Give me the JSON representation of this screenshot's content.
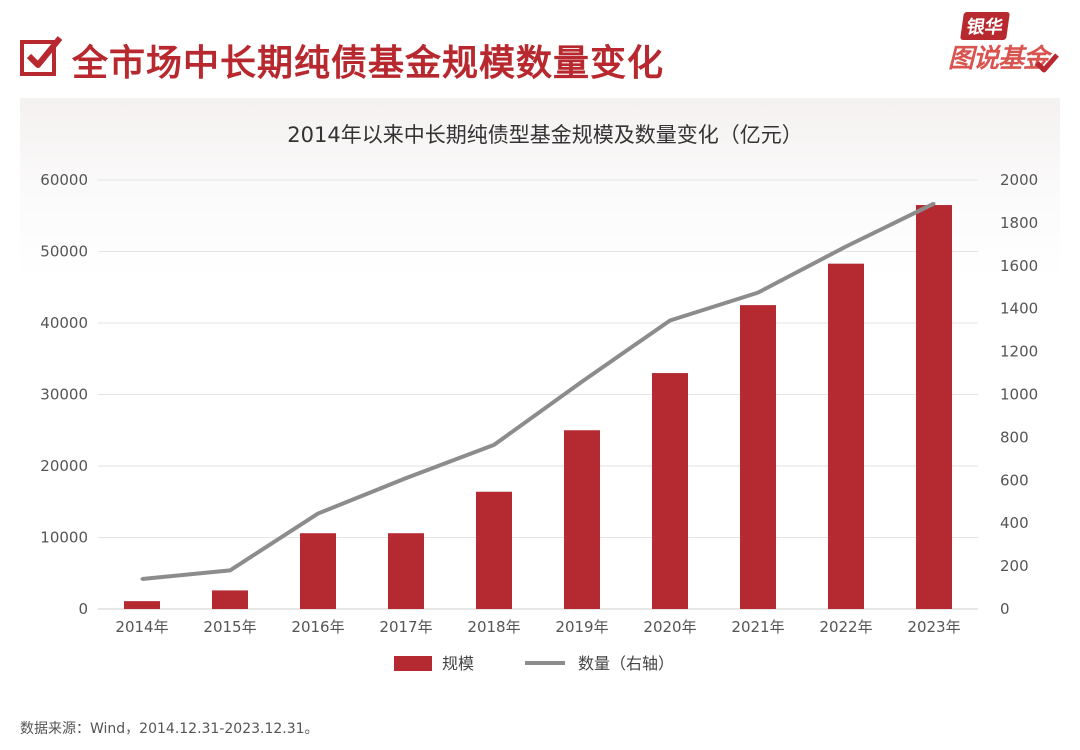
{
  "page": {
    "title": "全市场中长期纯债基金规模数量变化",
    "logo_top": "银华",
    "logo_bottom": "图说基金",
    "source": "数据来源：Wind，2014.12.31-2023.12.31。"
  },
  "colors": {
    "accent": "#b8292f",
    "bar": "#b52a31",
    "line": "#8c8c8c"
  },
  "chart_data": {
    "type": "bar",
    "title": "2014年以来中长期纯债型基金规模及数量变化（亿元）",
    "categories": [
      "2014年",
      "2015年",
      "2016年",
      "2017年",
      "2018年",
      "2019年",
      "2020年",
      "2021年",
      "2022年",
      "2023年"
    ],
    "series": [
      {
        "name": "规模",
        "type": "bar",
        "axis": "left",
        "values": [
          1100,
          2600,
          10600,
          10600,
          16400,
          25000,
          33000,
          42500,
          48300,
          56500
        ]
      },
      {
        "name": "数量（右轴）",
        "type": "line",
        "axis": "right",
        "values": [
          140,
          180,
          445,
          610,
          765,
          1060,
          1345,
          1475,
          1690,
          1890
        ]
      }
    ],
    "y_left": {
      "min": 0,
      "max": 60000,
      "ticks": [
        "0",
        "10000",
        "20000",
        "30000",
        "40000",
        "50000",
        "60000"
      ]
    },
    "y_right": {
      "min": 0,
      "max": 2000,
      "ticks": [
        "0",
        "200",
        "400",
        "600",
        "800",
        "1000",
        "1200",
        "1400",
        "1600",
        "1800",
        "2000"
      ]
    },
    "grid": true,
    "legend_position": "bottom"
  }
}
